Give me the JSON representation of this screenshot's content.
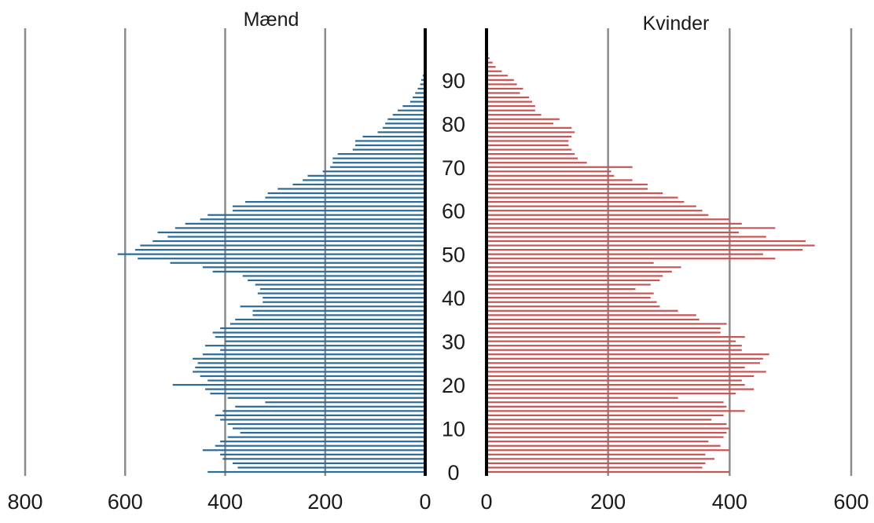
{
  "chart_data": {
    "type": "bar",
    "orientation": "horizontal",
    "layout": "population-pyramid",
    "age_axis": {
      "ticks": [
        "0",
        "10",
        "20",
        "30",
        "40",
        "50",
        "60",
        "70",
        "80",
        "90"
      ],
      "range": [
        0,
        97
      ]
    },
    "colors": {
      "maend": "#2a6b9a",
      "kvinder": "#c95454",
      "grid": "#8c8c8c",
      "axis": "#000000"
    },
    "panels": [
      {
        "title": "Mænd",
        "xlim": [
          0,
          800
        ],
        "ticks": [
          "800",
          "600",
          "400",
          "200",
          "0"
        ],
        "tick_values": [
          800,
          600,
          400,
          200,
          0
        ],
        "grid": true,
        "direction": "left",
        "values": [
          435,
          375,
          385,
          405,
          410,
          445,
          420,
          410,
          395,
          370,
          385,
          395,
          410,
          420,
          405,
          380,
          320,
          395,
          430,
          440,
          505,
          435,
          450,
          465,
          460,
          455,
          465,
          445,
          410,
          440,
          400,
          420,
          425,
          410,
          390,
          380,
          345,
          345,
          370,
          325,
          325,
          335,
          330,
          340,
          355,
          365,
          425,
          445,
          510,
          575,
          615,
          580,
          570,
          545,
          515,
          535,
          500,
          480,
          450,
          435,
          385,
          385,
          360,
          320,
          315,
          295,
          265,
          245,
          235,
          205,
          190,
          185,
          185,
          175,
          145,
          140,
          140,
          125,
          95,
          85,
          80,
          75,
          65,
          55,
          45,
          30,
          25,
          20,
          15,
          10,
          8,
          5,
          3,
          2,
          1,
          0,
          0,
          0
        ]
      },
      {
        "title": "Kvinder",
        "xlim": [
          0,
          600
        ],
        "ticks": [
          "0",
          "200",
          "400",
          "600"
        ],
        "tick_values": [
          0,
          200,
          400,
          600
        ],
        "grid": true,
        "direction": "right",
        "values": [
          400,
          355,
          360,
          375,
          360,
          400,
          385,
          365,
          390,
          395,
          400,
          395,
          370,
          390,
          425,
          395,
          390,
          315,
          410,
          440,
          425,
          420,
          440,
          460,
          425,
          450,
          455,
          465,
          420,
          420,
          410,
          425,
          385,
          385,
          395,
          350,
          345,
          315,
          285,
          280,
          270,
          275,
          245,
          270,
          285,
          290,
          305,
          320,
          275,
          475,
          455,
          520,
          540,
          525,
          460,
          415,
          475,
          420,
          400,
          365,
          355,
          345,
          325,
          315,
          290,
          265,
          265,
          240,
          210,
          205,
          240,
          165,
          150,
          145,
          140,
          135,
          135,
          140,
          145,
          140,
          110,
          120,
          90,
          80,
          80,
          75,
          70,
          55,
          60,
          50,
          45,
          35,
          25,
          15,
          10,
          5,
          3,
          2
        ]
      }
    ]
  }
}
